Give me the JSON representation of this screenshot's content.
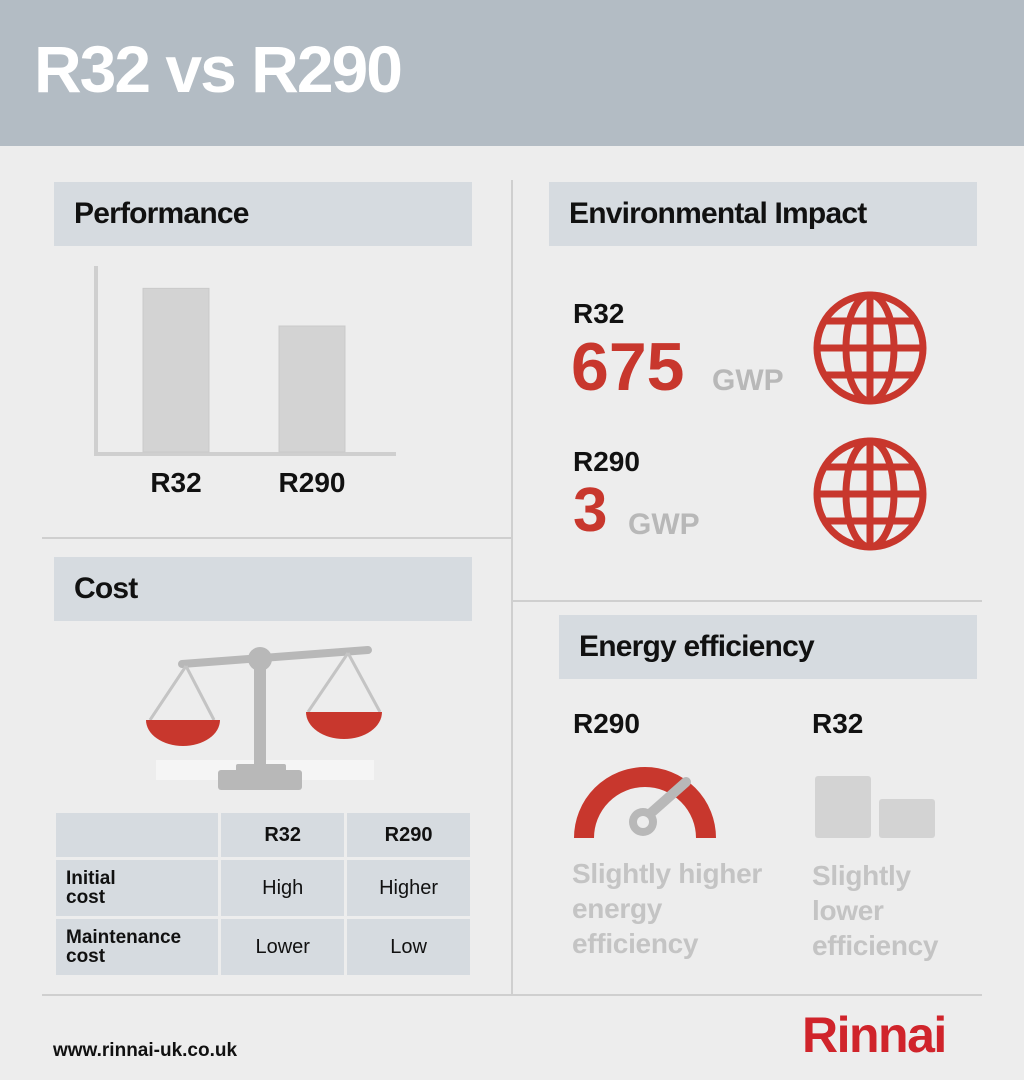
{
  "header": {
    "title": "R32 vs R290"
  },
  "performance": {
    "title": "Performance",
    "chart_data": {
      "type": "bar",
      "categories": [
        "R32",
        "R290"
      ],
      "values": [
        1.0,
        0.77
      ],
      "title": "",
      "xlabel": "",
      "ylabel": "",
      "ylim": [
        0,
        1.1
      ],
      "grid": false
    }
  },
  "environment": {
    "title": "Environmental Impact",
    "items": [
      {
        "name": "R32",
        "value": "675",
        "unit": "GWP",
        "icon": "globe-icon"
      },
      {
        "name": "R290",
        "value": "3",
        "unit": "GWP",
        "icon": "globe-icon"
      }
    ]
  },
  "cost": {
    "title": "Cost",
    "icon": "balance-scale-icon",
    "table": {
      "headers": [
        "",
        "R32",
        "R290"
      ],
      "rows": [
        {
          "label_line1": "Initial",
          "label_line2": "cost",
          "r32": "High",
          "r290": "Higher"
        },
        {
          "label_line1": "Maintenance",
          "label_line2": "cost",
          "r32": "Lower",
          "r290": "Low"
        }
      ]
    }
  },
  "efficiency": {
    "title": "Energy efficiency",
    "left": {
      "name": "R290",
      "icon": "gauge-icon",
      "desc_line1": "Slightly higher",
      "desc_line2": "energy",
      "desc_line3": "efficiency"
    },
    "right": {
      "name": "R32",
      "icon": "bar-blocks-icon",
      "desc_line1": "Slightly",
      "desc_line2": "lower",
      "desc_line3": "efficiency"
    }
  },
  "footer": {
    "url": "www.rinnai-uk.co.uk",
    "brand": "Rinnai"
  },
  "colors": {
    "header_bg": "#b3bcc4",
    "section_bg": "#d6dbe0",
    "accent_red": "#c8372d",
    "brand_red": "#d0242b",
    "bar_grey": "#d3d3d3"
  }
}
